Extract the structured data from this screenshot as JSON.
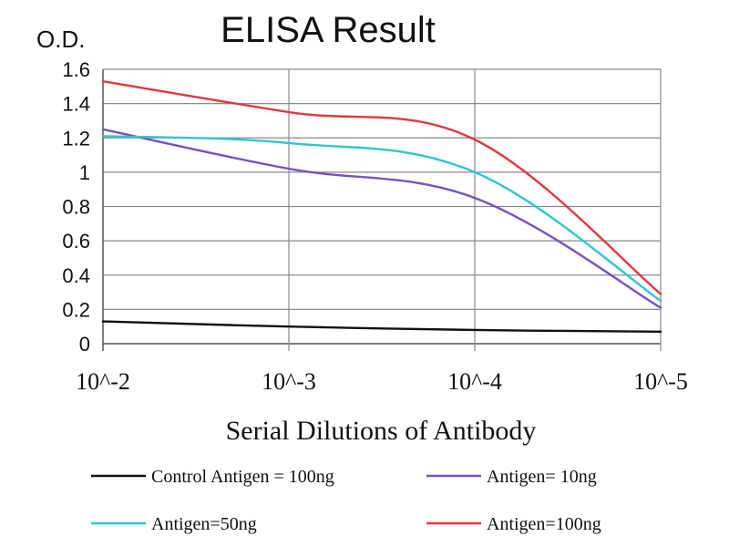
{
  "chart_data": {
    "type": "line",
    "title": "ELISA Result",
    "ylabel": "O.D.",
    "xlabel": "Serial Dilutions of Antibody",
    "categories": [
      "10^-2",
      "10^-3",
      "10^-4",
      "10^-5"
    ],
    "ylim": [
      0,
      1.6
    ],
    "yticks": [
      "0",
      "0.2",
      "0.4",
      "0.6",
      "0.8",
      "1",
      "1.2",
      "1.4",
      "1.6"
    ],
    "grid": true,
    "legend_position": "bottom",
    "series": [
      {
        "name": "Control Antigen = 100ng",
        "color": "#111111",
        "values": [
          0.13,
          0.1,
          0.08,
          0.07
        ]
      },
      {
        "name": "Antigen= 10ng",
        "color": "#7a4fc4",
        "values": [
          1.25,
          1.02,
          0.85,
          0.21
        ]
      },
      {
        "name": "Antigen=50ng",
        "color": "#2ec4d8",
        "values": [
          1.21,
          1.17,
          1.0,
          0.25
        ]
      },
      {
        "name": "Antigen=100ng",
        "color": "#e0393b",
        "values": [
          1.53,
          1.35,
          1.19,
          0.29
        ]
      }
    ]
  }
}
